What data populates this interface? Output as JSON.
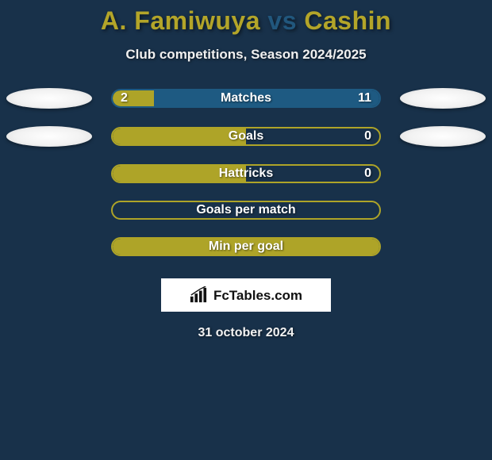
{
  "header": {
    "player_left": "A. Famiwuya",
    "vs": "vs",
    "player_right": "Cashin",
    "title_color_left": "#b3a529",
    "title_color_vs": "#21577d",
    "title_color_right": "#b3a529"
  },
  "subtitle": "Club competitions, Season 2024/2025",
  "colors": {
    "background": "#18314a",
    "bar_border_olive": "#aea428",
    "bar_border_blue": "#1e5a82",
    "fill_olive": "#aea428",
    "fill_blue": "#1e5a82",
    "badge_bg": "#f2f2f2"
  },
  "rows": [
    {
      "label": "Matches",
      "left_value": "2",
      "right_value": "11",
      "left_pct": 15.4,
      "right_pct": 84.6,
      "border_color": "#1e5a82",
      "left_fill": "#aea428",
      "right_fill": "#1e5a82",
      "show_left_badge": true,
      "show_right_badge": true,
      "show_left_value": true,
      "show_right_value": true
    },
    {
      "label": "Goals",
      "left_value": "",
      "right_value": "0",
      "left_pct": 50,
      "right_pct": 0,
      "border_color": "#aea428",
      "left_fill": "#aea428",
      "right_fill": "transparent",
      "show_left_badge": true,
      "show_right_badge": true,
      "show_left_value": false,
      "show_right_value": true
    },
    {
      "label": "Hattricks",
      "left_value": "",
      "right_value": "0",
      "left_pct": 50,
      "right_pct": 0,
      "border_color": "#aea428",
      "left_fill": "#aea428",
      "right_fill": "transparent",
      "show_left_badge": false,
      "show_right_badge": false,
      "show_left_value": false,
      "show_right_value": true
    },
    {
      "label": "Goals per match",
      "left_value": "",
      "right_value": "",
      "left_pct": 0,
      "right_pct": 0,
      "border_color": "#aea428",
      "left_fill": "transparent",
      "right_fill": "transparent",
      "show_left_badge": false,
      "show_right_badge": false,
      "show_left_value": false,
      "show_right_value": false
    },
    {
      "label": "Min per goal",
      "left_value": "",
      "right_value": "",
      "left_pct": 100,
      "right_pct": 0,
      "border_color": "#aea428",
      "left_fill": "#aea428",
      "right_fill": "transparent",
      "show_left_badge": false,
      "show_right_badge": false,
      "show_left_value": false,
      "show_right_value": false
    }
  ],
  "footer": {
    "brand": "FcTables.com",
    "date": "31 october 2024"
  }
}
